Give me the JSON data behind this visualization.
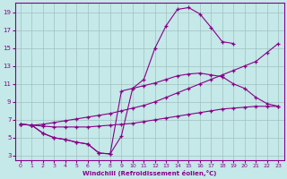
{
  "bg": "#c5e8e8",
  "grid_color": "#a0c0c0",
  "lc": "#880088",
  "xlabel": "Windchill (Refroidissement éolien,°C)",
  "xlim": [
    -0.5,
    23.5
  ],
  "ylim": [
    2.5,
    20
  ],
  "yticks": [
    3,
    5,
    7,
    9,
    11,
    13,
    15,
    17,
    19
  ],
  "xticks": [
    0,
    1,
    2,
    3,
    4,
    5,
    6,
    7,
    8,
    9,
    10,
    11,
    12,
    13,
    14,
    15,
    16,
    17,
    18,
    19,
    20,
    21,
    22,
    23
  ],
  "curve1_x": [
    0,
    1,
    2,
    3,
    4,
    5,
    6,
    7,
    8,
    9,
    10,
    11,
    12,
    13,
    14,
    15,
    16,
    17,
    18,
    19
  ],
  "curve1_y": [
    6.5,
    6.4,
    5.5,
    5.0,
    4.8,
    4.5,
    4.3,
    3.3,
    3.2,
    5.2,
    10.5,
    11.5,
    15.0,
    17.5,
    19.3,
    19.5,
    18.8,
    17.3,
    15.7,
    15.5
  ],
  "curve2_x": [
    0,
    1,
    2,
    3,
    4,
    5,
    6,
    7,
    8,
    9,
    10,
    11,
    12,
    13,
    14,
    15,
    16,
    17,
    18,
    19,
    20,
    21,
    22,
    23
  ],
  "curve2_y": [
    6.5,
    6.4,
    5.5,
    5.0,
    4.8,
    4.5,
    4.3,
    3.3,
    3.2,
    10.2,
    10.5,
    10.8,
    11.1,
    11.5,
    11.9,
    12.1,
    12.2,
    12.0,
    11.8,
    11.0,
    10.5,
    9.5,
    8.8,
    8.5
  ],
  "curve3_x": [
    0,
    1,
    2,
    3,
    4,
    5,
    6,
    7,
    8,
    9,
    10,
    11,
    12,
    13,
    14,
    15,
    16,
    17,
    18,
    19,
    20,
    21,
    22,
    23
  ],
  "curve3_y": [
    6.5,
    6.4,
    6.5,
    6.7,
    6.9,
    7.1,
    7.3,
    7.5,
    7.7,
    8.0,
    8.3,
    8.6,
    9.0,
    9.5,
    10.0,
    10.5,
    11.0,
    11.5,
    12.0,
    12.5,
    13.0,
    13.5,
    14.5,
    15.5
  ],
  "curve4_x": [
    0,
    1,
    2,
    3,
    4,
    5,
    6,
    7,
    8,
    9,
    10,
    11,
    12,
    13,
    14,
    15,
    16,
    17,
    18,
    19,
    20,
    21,
    22,
    23
  ],
  "curve4_y": [
    6.5,
    6.4,
    6.3,
    6.2,
    6.2,
    6.2,
    6.2,
    6.3,
    6.4,
    6.5,
    6.6,
    6.8,
    7.0,
    7.2,
    7.4,
    7.6,
    7.8,
    8.0,
    8.2,
    8.3,
    8.4,
    8.5,
    8.5,
    8.5
  ]
}
